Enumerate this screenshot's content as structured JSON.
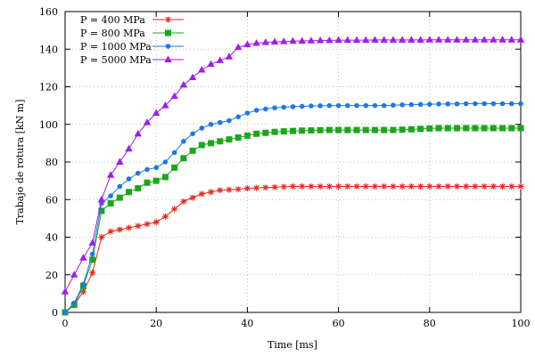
{
  "chart_data": {
    "type": "line",
    "xlabel": "Time [ms]",
    "ylabel": "Trabajo de rotura [kN m]",
    "xlim": [
      0,
      100
    ],
    "ylim": [
      0,
      160
    ],
    "xticks": [
      0,
      20,
      40,
      60,
      80,
      100
    ],
    "yticks": [
      0,
      20,
      40,
      60,
      80,
      100,
      120,
      140,
      160
    ],
    "grid": true,
    "legend_position": "top-left",
    "series": [
      {
        "name": "P =   400 MPa",
        "color": "#e8281e",
        "marker": "star",
        "x": [
          0,
          2,
          4,
          6,
          8,
          10,
          12,
          14,
          16,
          18,
          20,
          22,
          24,
          26,
          28,
          30,
          32,
          34,
          36,
          38,
          40,
          42,
          44,
          46,
          48,
          50,
          52,
          54,
          56,
          58,
          60,
          62,
          64,
          66,
          68,
          70,
          72,
          74,
          76,
          78,
          80,
          82,
          84,
          86,
          88,
          90,
          92,
          94,
          96,
          98,
          100
        ],
        "y": [
          0,
          4,
          11,
          21,
          40,
          43,
          44,
          45,
          46,
          47,
          48,
          51,
          55,
          59,
          61,
          63,
          64,
          65,
          65.2,
          65.5,
          66,
          66.2,
          66.4,
          66.6,
          66.8,
          67,
          67,
          67,
          67,
          67,
          67,
          67,
          67,
          67,
          67,
          67,
          67,
          67,
          67,
          67,
          67,
          67,
          67,
          67,
          67,
          67,
          67,
          67,
          67,
          67,
          67
        ]
      },
      {
        "name": "P =   800 MPa",
        "color": "#1aa81a",
        "marker": "square",
        "x": [
          0,
          2,
          4,
          6,
          8,
          10,
          12,
          14,
          16,
          18,
          20,
          22,
          24,
          26,
          28,
          30,
          32,
          34,
          36,
          38,
          40,
          42,
          44,
          46,
          48,
          50,
          52,
          54,
          56,
          58,
          60,
          62,
          64,
          66,
          68,
          70,
          72,
          74,
          76,
          78,
          80,
          82,
          84,
          86,
          88,
          90,
          92,
          94,
          96,
          98,
          100
        ],
        "y": [
          0,
          4,
          14,
          28,
          54,
          58,
          61,
          64,
          66,
          69,
          70,
          72,
          77,
          82,
          86,
          89,
          90,
          91,
          92,
          93,
          94,
          95,
          95.5,
          96,
          96.3,
          96.5,
          96.7,
          96.8,
          96.9,
          97,
          97,
          97,
          97,
          97,
          97,
          97,
          97,
          97.2,
          97.4,
          97.6,
          97.8,
          98,
          98,
          98,
          98,
          98,
          98,
          98,
          98,
          98,
          98
        ]
      },
      {
        "name": "P = 1000 MPa",
        "color": "#1e78e8",
        "marker": "dot",
        "x": [
          0,
          2,
          4,
          6,
          8,
          10,
          12,
          14,
          16,
          18,
          20,
          22,
          24,
          26,
          28,
          30,
          32,
          34,
          36,
          38,
          40,
          42,
          44,
          46,
          48,
          50,
          52,
          54,
          56,
          58,
          60,
          62,
          64,
          66,
          68,
          70,
          72,
          74,
          76,
          78,
          80,
          82,
          84,
          86,
          88,
          90,
          92,
          94,
          96,
          98,
          100
        ],
        "y": [
          0,
          5,
          15,
          31,
          58,
          62,
          67,
          71,
          74,
          76,
          77,
          80,
          85,
          91,
          95,
          98,
          100,
          101,
          102,
          104,
          106,
          107.5,
          108.2,
          108.8,
          109.1,
          109.4,
          109.6,
          109.8,
          109.9,
          110,
          110,
          110,
          110,
          110,
          110,
          110,
          110.2,
          110.4,
          110.5,
          110.6,
          110.7,
          110.8,
          110.9,
          110.9,
          111,
          111,
          111,
          111,
          111,
          111,
          111
        ]
      },
      {
        "name": "P = 5000 MPa",
        "color": "#a01ee8",
        "marker": "triangle",
        "x": [
          0,
          2,
          4,
          6,
          8,
          10,
          12,
          14,
          16,
          18,
          20,
          22,
          24,
          26,
          28,
          30,
          32,
          34,
          36,
          38,
          40,
          42,
          44,
          46,
          48,
          50,
          52,
          54,
          56,
          58,
          60,
          62,
          64,
          66,
          68,
          70,
          72,
          74,
          76,
          78,
          80,
          82,
          84,
          86,
          88,
          90,
          92,
          94,
          96,
          98,
          100
        ],
        "y": [
          11,
          20,
          29,
          37,
          60,
          73,
          80,
          87,
          95,
          101,
          106,
          110,
          115,
          121,
          125,
          129,
          132,
          134,
          136,
          141,
          142.5,
          143.2,
          143.6,
          143.9,
          144.1,
          144.3,
          144.4,
          144.5,
          144.6,
          144.7,
          144.8,
          144.8,
          144.8,
          144.8,
          144.9,
          144.9,
          144.9,
          144.9,
          144.9,
          144.9,
          145,
          145,
          145,
          145,
          145,
          145,
          145,
          145,
          145,
          145,
          145
        ]
      }
    ]
  }
}
